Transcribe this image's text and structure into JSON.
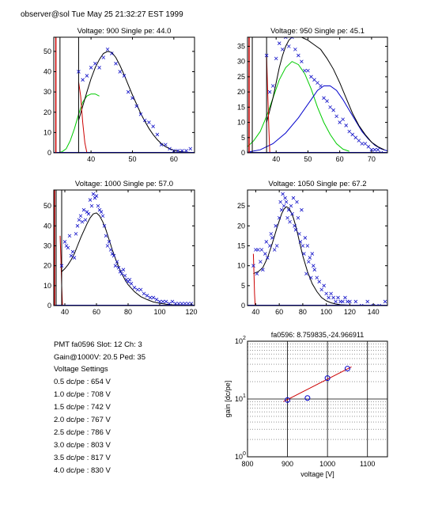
{
  "header": {
    "text": "observer@sol  Tue May 25 21:32:27 EST 1999"
  },
  "colors": {
    "data": "#1010c8",
    "fit": "#000000",
    "gauss1": "#00cc00",
    "gauss2": "#0000cc",
    "cut": "#cc0000",
    "grid": "#555555"
  },
  "info": {
    "pmt": "PMT fa0596 Slot: 12 Ch: 3",
    "gain": "Gain@1000V: 20.5 Ped: 35",
    "heading": "Voltage Settings",
    "settings": [
      "0.5 dc/pe : 654 V",
      "1.0 dc/pe : 708 V",
      "1.5 dc/pe : 742 V",
      "2.0 dc/pe : 767 V",
      "2.5 dc/pe : 786 V",
      "3.0 dc/pe : 803 V",
      "3.5 dc/pe : 817 V",
      "4.0 dc/pe : 830 V"
    ]
  },
  "chart_data": [
    {
      "type": "scatter",
      "title": "Voltage: 900 Single pe: 44.0",
      "xlim": [
        31,
        65
      ],
      "ylim": [
        0,
        57
      ],
      "xticks": [
        40,
        50,
        60
      ],
      "yticks": [
        0,
        10,
        20,
        30,
        40,
        50
      ],
      "series": [
        {
          "x": [
            37,
            38,
            39,
            40,
            41,
            42,
            43,
            44,
            45,
            46,
            47,
            48,
            49,
            50,
            51,
            52,
            53,
            54,
            55,
            56,
            57,
            58,
            59,
            60,
            61,
            62,
            63,
            64
          ],
          "y": [
            40,
            36,
            38,
            42,
            44,
            42,
            47,
            51,
            49,
            44,
            40,
            38,
            30,
            27,
            23,
            19,
            16,
            15,
            13,
            9,
            4,
            4,
            2,
            1,
            1,
            1,
            1,
            2
          ]
        }
      ],
      "fit": {
        "x": [
          37,
          38,
          39,
          40,
          41,
          42,
          43,
          44,
          45,
          46,
          47,
          48,
          49,
          50,
          51,
          52,
          53,
          54,
          55,
          56,
          57,
          58,
          59,
          60,
          61,
          62,
          63,
          64,
          65
        ],
        "y": [
          16,
          23,
          30,
          36.5,
          42,
          46,
          49,
          50,
          49.5,
          47,
          43,
          38.5,
          33.5,
          28.5,
          24,
          19.5,
          15.5,
          12,
          9,
          6.5,
          4.5,
          3,
          2,
          1.2,
          0.8,
          0.5,
          0.3,
          0.2,
          0.1
        ]
      },
      "gauss1": {
        "x": [
          31,
          32,
          33,
          34,
          35,
          36,
          37,
          38,
          39,
          40,
          41,
          42
        ],
        "y": [
          0,
          0,
          0.5,
          2,
          6,
          12,
          19,
          25,
          28,
          29,
          29,
          28
        ]
      },
      "gauss2": null,
      "cut": {
        "x": [
          37,
          37.5,
          38,
          38.5,
          39
        ],
        "y": [
          35,
          28,
          15,
          5,
          0
        ]
      },
      "spike": {
        "x": [
          31.5,
          32.5
        ],
        "y": [
          57,
          57
        ]
      },
      "vline": {
        "x": 37,
        "y": 57
      }
    },
    {
      "type": "scatter",
      "title": "Voltage: 950 Single pe: 45.1",
      "xlim": [
        31,
        75
      ],
      "ylim": [
        0,
        38
      ],
      "xticks": [
        40,
        50,
        60,
        70
      ],
      "yticks": [
        0,
        5,
        10,
        15,
        20,
        25,
        30,
        35
      ],
      "series": [
        {
          "x": [
            37,
            38,
            39,
            40,
            41,
            42,
            43,
            44,
            45,
            46,
            47,
            48,
            49,
            50,
            51,
            52,
            53,
            54,
            55,
            56,
            57,
            58,
            59,
            60,
            61,
            62,
            63,
            64,
            65,
            66,
            67,
            68,
            69,
            70,
            71,
            72,
            73
          ],
          "y": [
            32,
            20,
            22,
            31,
            36,
            34,
            38,
            35,
            38,
            34,
            32,
            30,
            27,
            27,
            25,
            24,
            23,
            22,
            18,
            17,
            15,
            14,
            12,
            10,
            11,
            9,
            7,
            6,
            5,
            4,
            3,
            3,
            2,
            1,
            1,
            1,
            0
          ]
        }
      ],
      "fit": {
        "x": [
          37,
          38,
          39,
          40,
          41,
          42,
          43,
          44,
          45,
          46,
          48,
          50,
          52,
          54,
          56,
          58,
          60,
          62,
          64,
          66,
          68,
          70,
          72,
          74
        ],
        "y": [
          10,
          14,
          18,
          23,
          28,
          32,
          35,
          37,
          38,
          38.5,
          38,
          37,
          35.5,
          34,
          31,
          27.5,
          23,
          18,
          13,
          9,
          6,
          3.5,
          2,
          1
        ]
      },
      "gauss1": {
        "x": [
          31,
          33,
          35,
          37,
          39,
          41,
          43,
          45,
          47,
          49,
          51,
          53,
          55,
          57,
          59,
          61,
          63
        ],
        "y": [
          2,
          4,
          7,
          12,
          18,
          24,
          28,
          30,
          29,
          26,
          21,
          15,
          10,
          6,
          3,
          1.2,
          0.5
        ]
      },
      "gauss2": {
        "x": [
          31,
          35,
          39,
          43,
          47,
          51,
          53,
          55,
          57,
          59,
          61,
          63,
          65,
          67,
          69,
          71,
          73,
          75
        ],
        "y": [
          0.2,
          1,
          3,
          6.5,
          11.5,
          17.5,
          20.5,
          22,
          22,
          20.5,
          17.5,
          14,
          10.5,
          7,
          4.5,
          2.5,
          1.3,
          0.6
        ]
      },
      "cut": {
        "x": [
          37,
          37.3,
          37.7,
          38
        ],
        "y": [
          32,
          22,
          8,
          0
        ]
      },
      "spike": {
        "x": [
          31.5,
          32.5
        ],
        "y": [
          38,
          38
        ]
      },
      "vline": {
        "x": 37,
        "y": 38
      }
    },
    {
      "type": "scatter",
      "title": "Voltage: 1000 Single pe: 57.0",
      "xlim": [
        33,
        122
      ],
      "ylim": [
        0,
        58
      ],
      "xticks": [
        40,
        60,
        80,
        100,
        120
      ],
      "yticks": [
        0,
        10,
        20,
        30,
        40,
        50
      ],
      "series": [
        {
          "x": [
            38,
            40,
            41,
            42,
            43,
            44,
            45,
            46,
            47,
            48,
            49,
            50,
            51,
            52,
            53,
            54,
            55,
            56,
            57,
            58,
            59,
            60,
            61,
            62,
            63,
            64,
            65,
            66,
            67,
            68,
            69,
            70,
            71,
            72,
            73,
            74,
            75,
            76,
            77,
            78,
            79,
            80,
            81,
            82,
            84,
            86,
            88,
            90,
            92,
            94,
            96,
            98,
            100,
            102,
            104,
            106,
            108,
            110,
            112,
            114,
            116,
            118,
            120
          ],
          "y": [
            20,
            32,
            30,
            29,
            35,
            25,
            27,
            24,
            36,
            40,
            43,
            45,
            42,
            48,
            43,
            47,
            46,
            53,
            50,
            56,
            54,
            55,
            50,
            48,
            47,
            45,
            40,
            35,
            30,
            32,
            28,
            26,
            25,
            20,
            22,
            19,
            17,
            16,
            18,
            15,
            13,
            12,
            13,
            11,
            9,
            8,
            8,
            6,
            5,
            4,
            4,
            3,
            2,
            2,
            2,
            1,
            2,
            1,
            1,
            1,
            1,
            1,
            1
          ]
        }
      ],
      "fit": {
        "x": [
          38,
          40,
          42,
          44,
          46,
          48,
          50,
          52,
          54,
          56,
          58,
          60,
          62,
          64,
          66,
          68,
          70,
          72,
          74,
          76,
          78,
          80,
          84,
          88,
          92,
          96,
          100,
          104,
          108,
          112,
          116,
          120
        ],
        "y": [
          17,
          18.5,
          20.5,
          23,
          26,
          30,
          34,
          37.5,
          41,
          44,
          46,
          46.5,
          45,
          42,
          38,
          33,
          28,
          23.5,
          19.5,
          16,
          13,
          10.5,
          7,
          4.5,
          3,
          1.8,
          1.2,
          0.7,
          0.4,
          0.3,
          0.2,
          0.1
        ]
      },
      "gauss1": null,
      "gauss2": null,
      "cut": {
        "x": [
          37,
          37.5,
          38,
          38.5
        ],
        "y": [
          35,
          24,
          10,
          0
        ]
      },
      "spike": {
        "x": [
          33.5,
          34.5
        ],
        "y": [
          58,
          58
        ]
      },
      "vline": {
        "x": 38,
        "y": 58
      }
    },
    {
      "type": "scatter",
      "title": "Voltage: 1050 Single pe: 67.2",
      "xlim": [
        33,
        152
      ],
      "ylim": [
        0,
        29
      ],
      "xticks": [
        40,
        60,
        80,
        100,
        120,
        140
      ],
      "yticks": [
        0,
        5,
        10,
        15,
        20,
        25
      ],
      "series": [
        {
          "x": [
            38,
            40,
            41,
            42,
            44,
            45,
            46,
            48,
            49,
            50,
            52,
            53,
            54,
            56,
            57,
            58,
            60,
            61,
            62,
            63,
            64,
            65,
            66,
            67,
            68,
            69,
            70,
            71,
            72,
            73,
            74,
            75,
            76,
            77,
            78,
            79,
            80,
            81,
            82,
            83,
            84,
            85,
            86,
            87,
            88,
            89,
            90,
            92,
            94,
            96,
            98,
            100,
            102,
            104,
            106,
            108,
            110,
            112,
            114,
            116,
            118,
            120,
            125,
            130,
            135,
            140,
            145,
            150
          ],
          "y": [
            10,
            14,
            8,
            14,
            11,
            14,
            9,
            13,
            16,
            12,
            15,
            18,
            17,
            14,
            20,
            15,
            22,
            26,
            24,
            28,
            25,
            27,
            26,
            22,
            24,
            21,
            25,
            23,
            27,
            20,
            19,
            26,
            22,
            18,
            16,
            24,
            15,
            13,
            17,
            8,
            15,
            11,
            12,
            7,
            13,
            10,
            9,
            7,
            6,
            4,
            5,
            3,
            2,
            3,
            2,
            1,
            2,
            1,
            1,
            2,
            1,
            1,
            1,
            0,
            1,
            0,
            0,
            1
          ]
        }
      ],
      "fit": {
        "x": [
          38,
          42,
          46,
          50,
          54,
          58,
          62,
          64,
          66,
          68,
          70,
          72,
          74,
          76,
          78,
          80,
          84,
          88,
          92,
          96,
          100,
          104,
          108,
          112,
          120,
          130,
          140,
          150
        ],
        "y": [
          8,
          8.5,
          9.5,
          12,
          15.5,
          19.5,
          23,
          24.2,
          24.8,
          24.5,
          23.5,
          22,
          20,
          17.5,
          15,
          12.5,
          8.5,
          5.5,
          3.5,
          2,
          1.2,
          0.7,
          0.4,
          0.2,
          0.1,
          0.05,
          0.02,
          0.01
        ]
      },
      "gauss1": null,
      "gauss2": null,
      "cut": {
        "x": [
          38,
          38.5,
          39,
          39.5
        ],
        "y": [
          13,
          8,
          3,
          0
        ]
      },
      "spike": null,
      "vline": null
    },
    {
      "type": "scatter",
      "title": "fa0596: 8.759835,-24.966911",
      "xlabel": "voltage [V]",
      "ylabel": "gain [dc/pe]",
      "xlim": [
        800,
        1150
      ],
      "ylim": [
        1,
        100
      ],
      "yscale": "log",
      "xticks": [
        800,
        900,
        1000,
        1100
      ],
      "yticklabels": [
        {
          "base": "10",
          "exp": "0"
        },
        {
          "base": "10",
          "exp": "1"
        },
        {
          "base": "10",
          "exp": "2"
        }
      ],
      "grid": true,
      "series": [
        {
          "x": [
            900,
            950,
            1000,
            1050
          ],
          "y": [
            9.6,
            10.4,
            23.0,
            33.6
          ]
        }
      ],
      "fit": {
        "x": [
          890,
          1060
        ],
        "y": [
          9.0,
          36.0
        ]
      }
    }
  ]
}
